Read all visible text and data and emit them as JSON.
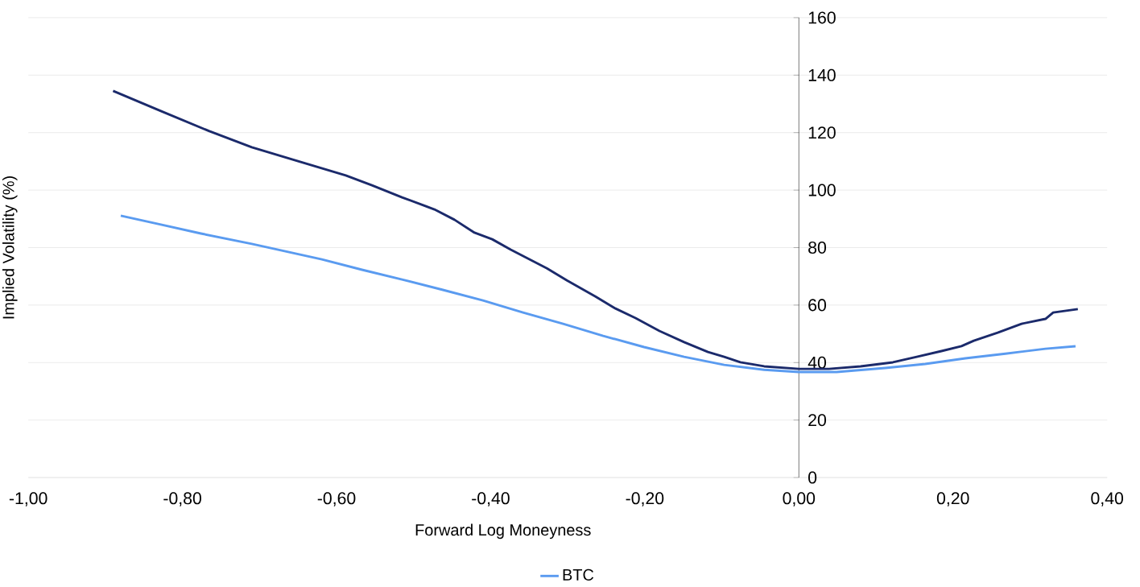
{
  "chart_data": {
    "type": "line",
    "xlabel": "Forward Log Moneyness",
    "ylabel": "Implied Volatility (%)",
    "xlim": [
      -1,
      0.4
    ],
    "ylim": [
      0,
      160
    ],
    "xticks": [
      {
        "value": -1,
        "label": "-1,00"
      },
      {
        "value": -0.8,
        "label": "-0,80"
      },
      {
        "value": -0.6,
        "label": "-0,60"
      },
      {
        "value": -0.4,
        "label": "-0,40"
      },
      {
        "value": -0.2,
        "label": "-0,20"
      },
      {
        "value": 0,
        "label": "0,00"
      },
      {
        "value": 0.2,
        "label": "0,20"
      },
      {
        "value": 0.4,
        "label": "0,40"
      }
    ],
    "yticks": [
      0,
      20,
      40,
      60,
      80,
      100,
      120,
      140,
      160
    ],
    "grid": "y",
    "legend": "bottom",
    "series": [
      {
        "color": "#1b2a6b",
        "x": [
          -0.89,
          -0.828,
          -0.765,
          -0.71,
          -0.65,
          -0.588,
          -0.554,
          -0.515,
          -0.473,
          -0.447,
          -0.421,
          -0.398,
          -0.374,
          -0.327,
          -0.301,
          -0.264,
          -0.238,
          -0.212,
          -0.181,
          -0.149,
          -0.118,
          -0.097,
          -0.076,
          -0.045,
          0,
          0.039,
          0.08,
          0.122,
          0.153,
          0.185,
          0.211,
          0.227,
          0.258,
          0.289,
          0.32,
          0.33,
          0.362
        ],
        "values": [
          134.5,
          127.5,
          120.5,
          114.9,
          110.1,
          105.1,
          101.7,
          97.5,
          93.3,
          89.7,
          85.2,
          82.9,
          79.3,
          72.8,
          68.6,
          63.0,
          58.8,
          55.5,
          51.0,
          47.1,
          43.7,
          42.0,
          40.1,
          38.7,
          37.8,
          37.8,
          38.7,
          40.1,
          42.0,
          44.0,
          45.7,
          47.6,
          50.4,
          53.5,
          55.2,
          57.4,
          58.6
        ]
      },
      {
        "name": "BTC",
        "color": "#5a9bf0",
        "x": [
          -0.88,
          -0.828,
          -0.776,
          -0.71,
          -0.619,
          -0.567,
          -0.515,
          -0.462,
          -0.41,
          -0.358,
          -0.306,
          -0.254,
          -0.201,
          -0.149,
          -0.097,
          -0.045,
          0,
          0.049,
          0.112,
          0.164,
          0.216,
          0.268,
          0.32,
          0.359
        ],
        "values": [
          91.1,
          88.0,
          84.9,
          81.3,
          75.9,
          72.3,
          68.9,
          65.3,
          61.6,
          57.4,
          53.5,
          49.3,
          45.4,
          42.0,
          39.2,
          37.5,
          36.7,
          36.7,
          38.1,
          39.5,
          41.5,
          43.1,
          44.8,
          45.7
        ]
      }
    ]
  }
}
